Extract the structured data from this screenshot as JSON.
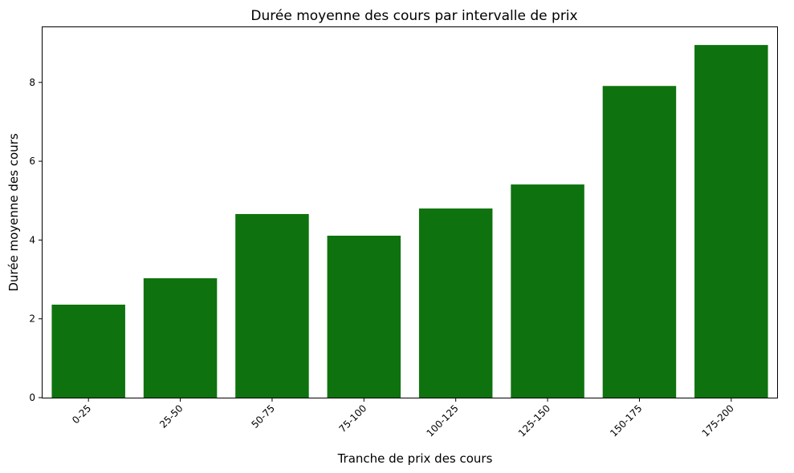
{
  "chart_data": {
    "type": "bar",
    "title": "Durée moyenne des cours par intervalle de prix",
    "xlabel": "Tranche de prix des cours",
    "ylabel": "Durée moyenne des cours",
    "categories": [
      "0-25",
      "25-50",
      "50-75",
      "75-100",
      "100-125",
      "125-150",
      "150-175",
      "175-200"
    ],
    "values": [
      2.36,
      3.03,
      4.66,
      4.11,
      4.8,
      5.41,
      7.91,
      8.95
    ],
    "ylim": [
      0,
      9.4
    ],
    "yticks": [
      0,
      2,
      4,
      6,
      8
    ],
    "bar_color": "#0e730e",
    "grid": false,
    "legend": "none",
    "xtick_rotation": 45
  }
}
